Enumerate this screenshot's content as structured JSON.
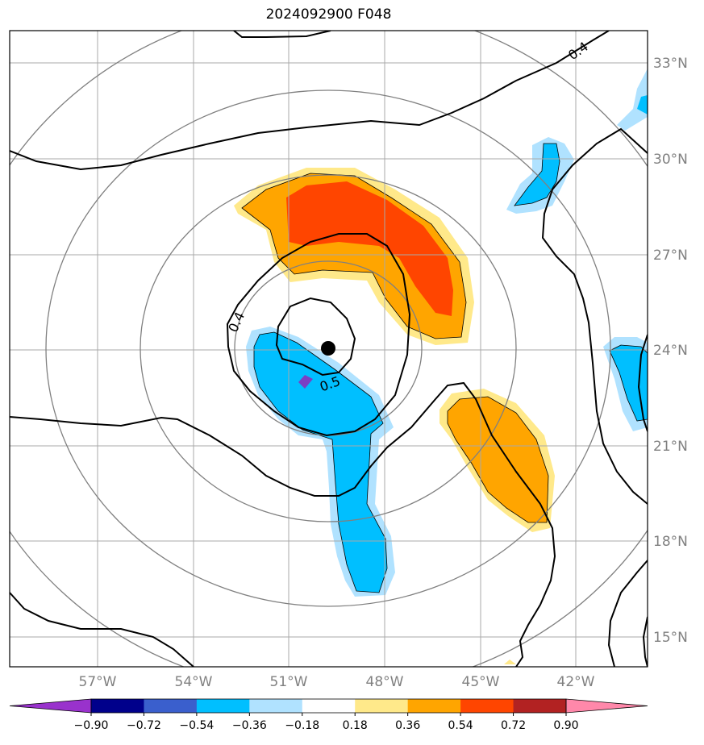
{
  "title": "2024092900 F048",
  "lon_labels": [
    "57°W",
    "54°W",
    "51°W",
    "48°W",
    "45°W",
    "42°W"
  ],
  "lat_labels": [
    "33°N",
    "30°N",
    "27°N",
    "24°N",
    "21°N",
    "18°N",
    "15°N"
  ],
  "contour_labels": [
    "0.4",
    "0.4",
    "0.5",
    "0.4"
  ],
  "colorbar": {
    "tick_labels": [
      "−0.90",
      "−0.72",
      "−0.54",
      "−0.36",
      "−0.18",
      "0.18",
      "0.36",
      "0.54",
      "0.72",
      "0.90"
    ],
    "colors": [
      "#9932cc",
      "#00008b",
      "#3a5fcd",
      "#00bfff",
      "#b0e2ff",
      "#ffffff",
      "#ffe98a",
      "#ffa500",
      "#ff4500",
      "#b22222",
      "#ff88aa"
    ]
  },
  "colors": {
    "grid": "#a9a9a9",
    "range_rings": "#808080",
    "contour": "#000000",
    "center_marker": "#000000"
  }
}
